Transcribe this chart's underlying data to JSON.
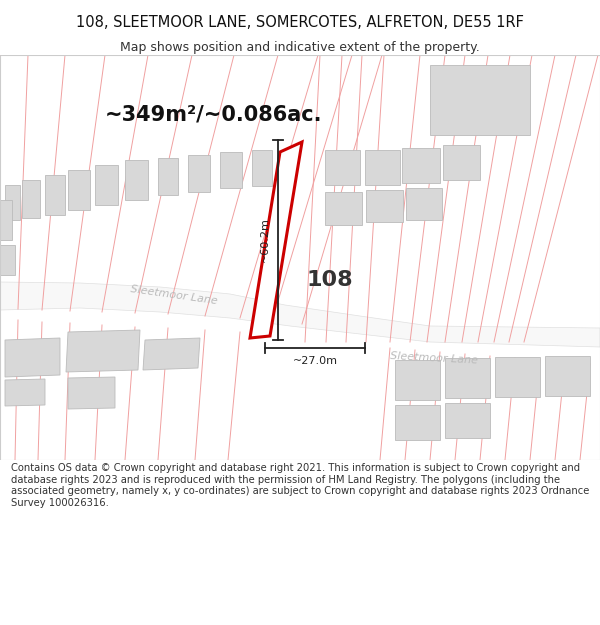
{
  "title": "108, SLEETMOOR LANE, SOMERCOTES, ALFRETON, DE55 1RF",
  "subtitle": "Map shows position and indicative extent of the property.",
  "area_text": "~349m²/~0.086ac.",
  "label_108": "108",
  "dim_vertical": "~60.2m",
  "dim_horizontal": "~27.0m",
  "road_label1": "Sleetmoor Lane",
  "road_label2": "Sleetmoor Lane",
  "footer": "Contains OS data © Crown copyright and database right 2021. This information is subject to Crown copyright and database rights 2023 and is reproduced with the permission of HM Land Registry. The polygons (including the associated geometry, namely x, y co-ordinates) are subject to Crown copyright and database rights 2023 Ordnance Survey 100026316.",
  "bg_color": "#ffffff",
  "line_color": "#f0a0a0",
  "plot_color": "#cc0000",
  "building_fill": "#d8d8d8",
  "building_edge": "#bbbbbb",
  "dim_color": "#222222",
  "road_text_color": "#bbbbbb",
  "title_fontsize": 10.5,
  "subtitle_fontsize": 9,
  "area_fontsize": 15,
  "label_fontsize": 16,
  "footer_fontsize": 7.2
}
